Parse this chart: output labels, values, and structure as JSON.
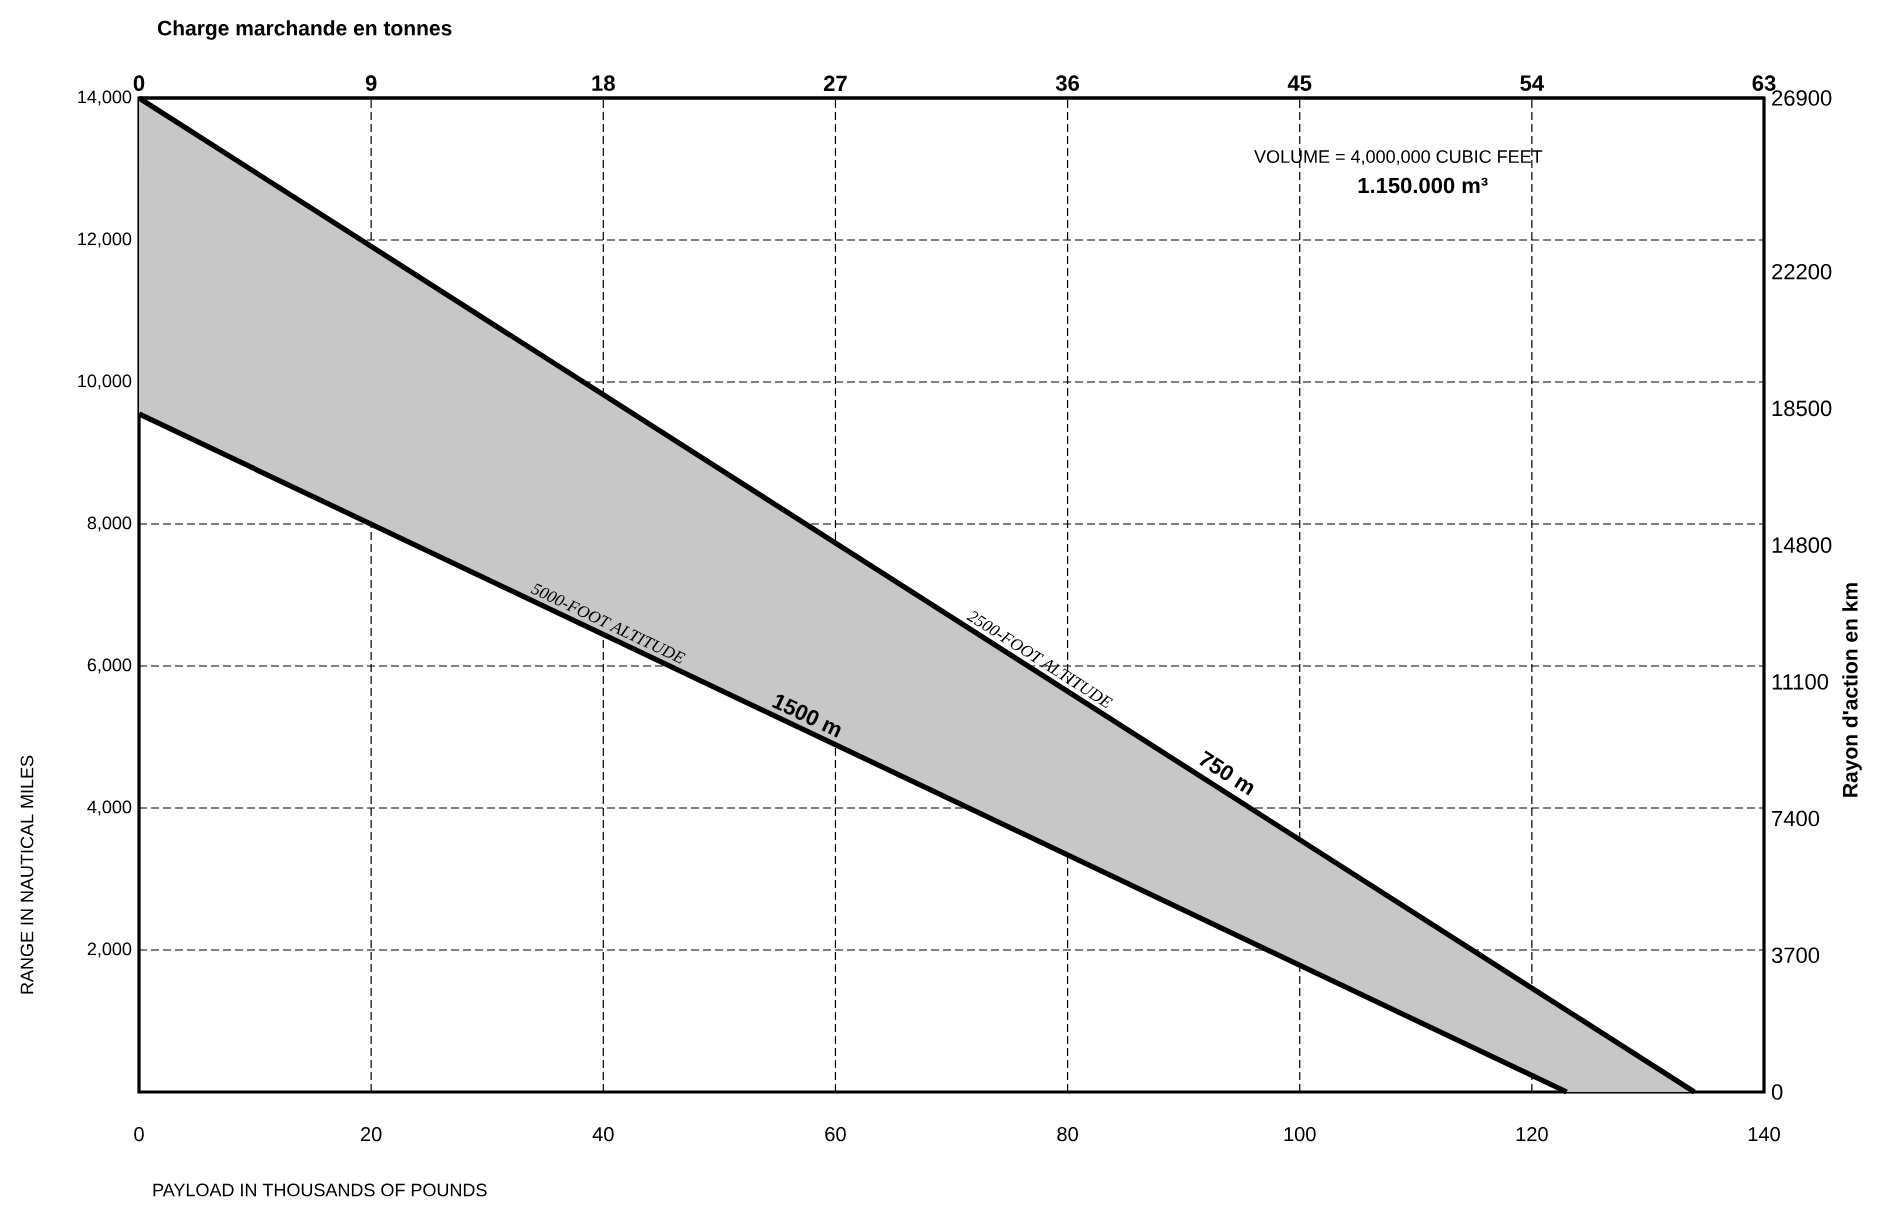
{
  "chart_data": {
    "type": "line",
    "xlabel": "PAYLOAD IN THOUSANDS OF POUNDS",
    "ylabel": "RANGE IN NAUTICAL MILES",
    "x2label": "Charge marchande en tonnes",
    "y2label": "Rayon d'action en km",
    "xlim": [
      0,
      140
    ],
    "xticks": [
      0,
      20,
      40,
      60,
      80,
      100,
      120,
      140
    ],
    "ylim": [
      0,
      14000
    ],
    "yticks": [
      {
        "value": 2000,
        "label": "2,000"
      },
      {
        "value": 4000,
        "label": "4,000"
      },
      {
        "value": 6000,
        "label": "6,000"
      },
      {
        "value": 8000,
        "label": "8,000"
      },
      {
        "value": 10000,
        "label": "10,000"
      },
      {
        "value": 12000,
        "label": "12,000"
      },
      {
        "value": 14000,
        "label": "14,000"
      }
    ],
    "x2lim": [
      0,
      63
    ],
    "x2ticks": [
      0,
      9,
      18,
      27,
      36,
      45,
      54,
      63
    ],
    "y2lim": [
      0,
      26900
    ],
    "y2ticks": [
      0,
      3700,
      7400,
      11100,
      14800,
      18500,
      22200,
      26900
    ],
    "grid": true,
    "line_style": "solid",
    "series": [
      {
        "name": "2500-FOOT ALTITUDE",
        "color": "#000000",
        "x": [
          0,
          123,
          134
        ],
        "values": [
          14000,
          1150,
          0
        ],
        "lower": [
          9550,
          0,
          0
        ],
        "upper": [
          14000,
          1150,
          0
        ]
      },
      {
        "name": "5000-FOOT ALTITUDE",
        "color": "#000000",
        "x": [
          0,
          123
        ],
        "values": [
          9550,
          0
        ]
      }
    ],
    "annotations": [
      "VOLUME = 4,000,000 CUBIC FEET",
      "1.150.000 m³",
      {
        "text": "750 m",
        "x": 93,
        "y": 4300
      },
      {
        "text": "1500 m",
        "x": 57,
        "y": 5100
      }
    ]
  }
}
